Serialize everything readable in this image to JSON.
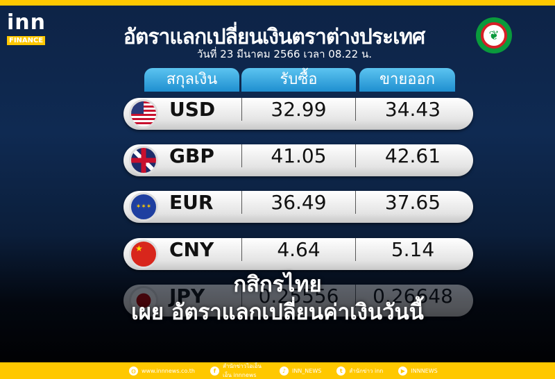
{
  "brand": {
    "logo_top": "inn",
    "logo_bottom": "FINANCE",
    "yellow": "#ffc800"
  },
  "header": {
    "title": "อัตราแลกเปลี่ยนเงินตราต่างประเทศ",
    "subtitle": "วันที่ 23 มีนาคม 2566 เวลา   08.22 น."
  },
  "table": {
    "columns": [
      "สกุลเงิน",
      "รับซื้อ",
      "ขายออก"
    ],
    "rows": [
      {
        "code": "USD",
        "flag": "us-flag-icon",
        "buy": "32.99",
        "sell": "34.43"
      },
      {
        "code": "GBP",
        "flag": "uk-flag-icon",
        "buy": "41.05",
        "sell": "42.61"
      },
      {
        "code": "EUR",
        "flag": "eu-flag-icon",
        "buy": "36.49",
        "sell": "37.65"
      },
      {
        "code": "CNY",
        "flag": "cn-flag-icon",
        "buy": "4.64",
        "sell": "5.14"
      },
      {
        "code": "JPY",
        "flag": "jp-flag-icon",
        "buy": "0.25556",
        "sell": "0.26648"
      }
    ]
  },
  "headline": {
    "line1": "กสิกรไทย",
    "line2": "เผย อัตราแลกเปลี่ยนค่าเงินวันนี้"
  },
  "footer": [
    {
      "icon": "globe-icon",
      "label": "www.innnews.co.th"
    },
    {
      "icon": "facebook-icon",
      "label": "สำนักข่าวไอเอ็นเอ็น innnews"
    },
    {
      "icon": "tiktok-icon",
      "label": "INN_NEWS"
    },
    {
      "icon": "twitter-icon",
      "label": "สำนักข่าว inn"
    },
    {
      "icon": "youtube-icon",
      "label": "INNNEWS"
    }
  ]
}
